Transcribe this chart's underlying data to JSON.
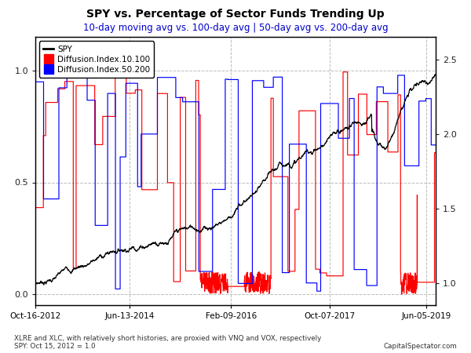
{
  "title": "SPY vs. Percentage of Sector Funds Trending Up",
  "subtitle": "10-day moving avg vs. 100-day avg | 50-day avg vs. 200-day avg",
  "subtitle_color": "#0000cc",
  "title_fontsize": 10,
  "subtitle_fontsize": 8.5,
  "legend_labels": [
    "SPY",
    "Diffusion.Index.10.100",
    "Diffusion.Index.50.200"
  ],
  "legend_colors": [
    "#000000",
    "#ff0000",
    "#0000ff"
  ],
  "spy_color": "#000000",
  "di10_color": "#ff0000",
  "di50_color": "#0000ff",
  "x_tick_labels": [
    "Oct-16-2012",
    "Jun-13-2014",
    "Feb-09-2016",
    "Oct-07-2017",
    "Jun-05-2019"
  ],
  "tick_positions": [
    0,
    400,
    830,
    1250,
    1660
  ],
  "footnote1": "XLRE and XLC, with relatively short histories, are proxied with VNQ and VOX, respectively",
  "footnote2": "SPY: Oct 15, 2012 = 1.0",
  "footnote3": "CapitalSpectator.com",
  "grid_color": "#bbbbbb",
  "grid_style": "--",
  "background_color": "#ffffff",
  "spy_ylim": [
    0.85,
    2.65
  ],
  "di_ylim": [
    -0.05,
    1.15
  ],
  "spy_yticks": [
    1.0,
    1.5,
    2.0,
    2.5
  ],
  "di_yticks": [
    0.0,
    0.5,
    1.0
  ],
  "n_points": 1700
}
